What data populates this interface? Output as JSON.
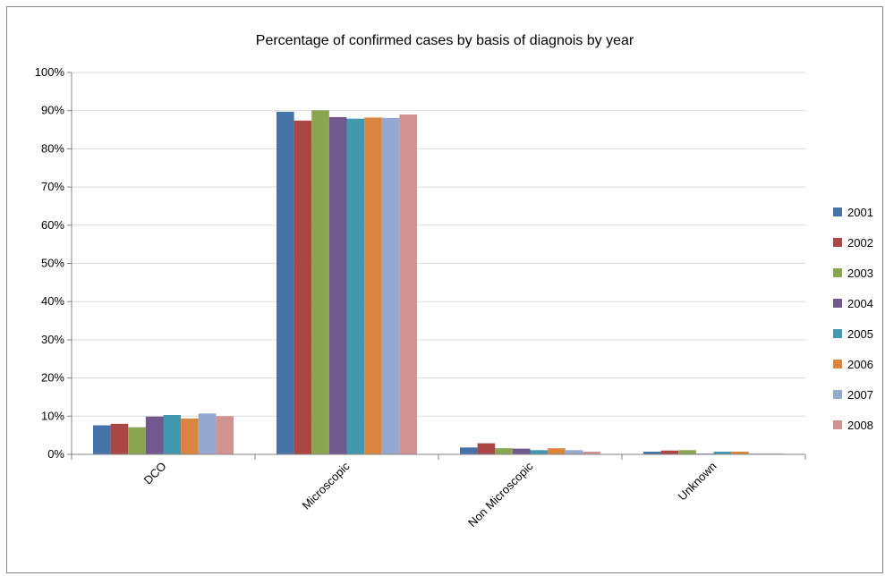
{
  "chart_data": {
    "type": "bar",
    "title": "Percentage of confirmed cases by basis of diagnois by year",
    "xlabel": "",
    "ylabel": "",
    "categories": [
      "DCO",
      "Microscopic",
      "Non Microscopic",
      "Unknown"
    ],
    "yticks": [
      "0%",
      "10%",
      "20%",
      "30%",
      "40%",
      "50%",
      "60%",
      "70%",
      "80%",
      "90%",
      "100%"
    ],
    "ylim": [
      0,
      100
    ],
    "grid": true,
    "legend_position": "right",
    "series": [
      {
        "name": "2001",
        "color": "#4572A7",
        "values": [
          7.6,
          89.7,
          1.8,
          0.7
        ]
      },
      {
        "name": "2002",
        "color": "#AA4643",
        "values": [
          8.0,
          87.4,
          2.9,
          1.0
        ]
      },
      {
        "name": "2003",
        "color": "#89A54E",
        "values": [
          7.1,
          90.1,
          1.6,
          1.1
        ]
      },
      {
        "name": "2004",
        "color": "#71588F",
        "values": [
          9.9,
          88.3,
          1.5,
          0.2
        ]
      },
      {
        "name": "2005",
        "color": "#4198AF",
        "values": [
          10.3,
          87.9,
          1.1,
          0.7
        ]
      },
      {
        "name": "2006",
        "color": "#DB843D",
        "values": [
          9.4,
          88.2,
          1.6,
          0.7
        ]
      },
      {
        "name": "2007",
        "color": "#93A9CF",
        "values": [
          10.7,
          88.1,
          1.1,
          0.2
        ]
      },
      {
        "name": "2008",
        "color": "#D19392",
        "values": [
          10.0,
          89.0,
          0.7,
          0.2
        ]
      }
    ]
  },
  "colors": {
    "gridline": "#d9d9d9",
    "axis": "#868686",
    "frame_border": "#868686"
  }
}
